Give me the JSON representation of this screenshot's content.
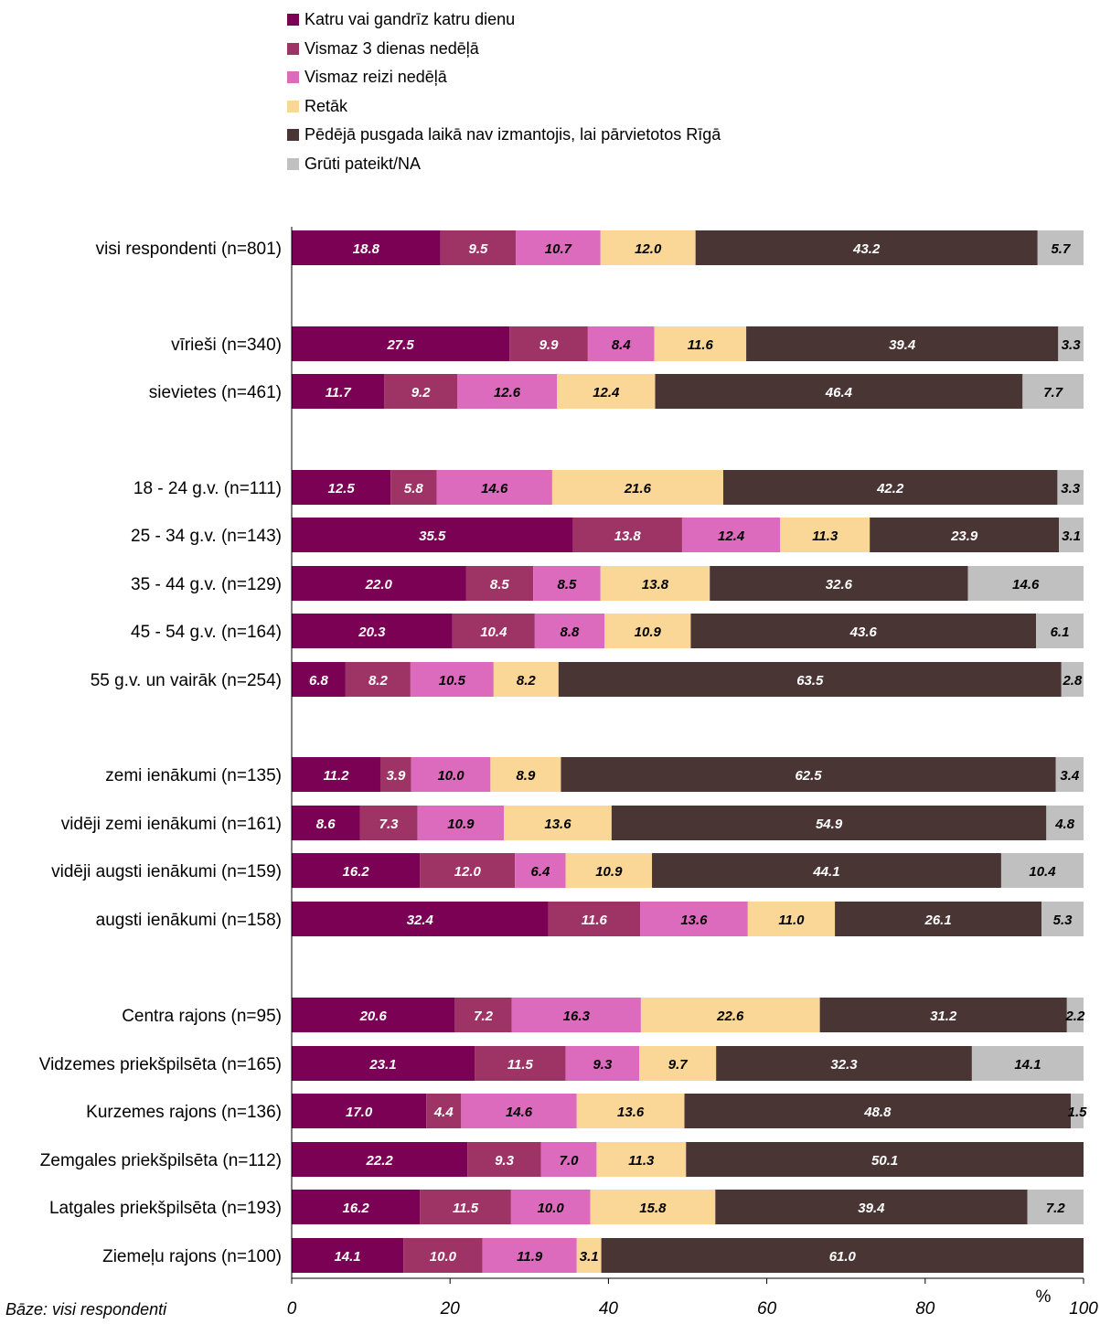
{
  "chart_data": {
    "type": "bar",
    "orientation": "horizontal",
    "stacked": true,
    "series": [
      {
        "name": "Katru vai gandrīz katru dienu",
        "color": "#7b0154",
        "label_color": "#ffffff"
      },
      {
        "name": "Vismaz 3 dienas nedēļā",
        "color": "#9e3466",
        "label_color": "#ffffff"
      },
      {
        "name": "Vismaz reizi nedēļā",
        "color": "#dd6bbd",
        "label_color": "#000000"
      },
      {
        "name": "Retāk",
        "color": "#fad797",
        "label_color": "#000000"
      },
      {
        "name": "Pēdējā pusgada laikā nav izmantojis, lai pārvietotos Rīgā",
        "color": "#4a3535",
        "label_color": "#ffffff"
      },
      {
        "name": "Grūti pateikt/NA",
        "color": "#c0c0c0",
        "label_color": "#000000"
      }
    ],
    "categories": [
      "visi respondenti (n=801)",
      "vīrieši (n=340)",
      "sievietes (n=461)",
      "18 - 24 g.v. (n=111)",
      "25 - 34 g.v. (n=143)",
      "35 - 44 g.v. (n=129)",
      "45 - 54 g.v. (n=164)",
      "55 g.v. un vairāk  (n=254)",
      "zemi ienākumi (n=135)",
      "vidēji zemi ienākumi (n=161)",
      "vidēji augsti ienākumi (n=159)",
      "augsti ienākumi (n=158)",
      "Centra rajons (n=95)",
      "Vidzemes priekšpilsēta (n=165)",
      "Kurzemes rajons (n=136)",
      "Zemgales priekšpilsēta (n=112)",
      "Latgales priekšpilsēta (n=193)",
      "Ziemeļu rajons (n=100)"
    ],
    "values": [
      [
        18.8,
        9.5,
        10.7,
        12.0,
        43.2,
        5.7
      ],
      [
        27.5,
        9.9,
        8.4,
        11.6,
        39.4,
        3.3
      ],
      [
        11.7,
        9.2,
        12.6,
        12.4,
        46.4,
        7.7
      ],
      [
        12.5,
        5.8,
        14.6,
        21.6,
        42.2,
        3.3
      ],
      [
        35.5,
        13.8,
        12.4,
        11.3,
        23.9,
        3.1
      ],
      [
        22.0,
        8.5,
        8.5,
        13.8,
        32.6,
        14.6
      ],
      [
        20.3,
        10.4,
        8.8,
        10.9,
        43.6,
        6.1
      ],
      [
        6.8,
        8.2,
        10.5,
        8.2,
        63.5,
        2.8
      ],
      [
        11.2,
        3.9,
        10.0,
        8.9,
        62.5,
        3.4
      ],
      [
        8.6,
        7.3,
        10.9,
        13.6,
        54.9,
        4.8
      ],
      [
        16.2,
        12.0,
        6.4,
        10.9,
        44.1,
        10.4
      ],
      [
        32.4,
        11.6,
        13.6,
        11.0,
        26.1,
        5.3
      ],
      [
        20.6,
        7.2,
        16.3,
        22.6,
        31.2,
        2.2
      ],
      [
        23.1,
        11.5,
        9.3,
        9.7,
        32.3,
        14.1
      ],
      [
        17.0,
        4.4,
        14.6,
        13.6,
        48.8,
        1.5
      ],
      [
        22.2,
        9.3,
        7.0,
        11.3,
        50.1,
        null
      ],
      [
        16.2,
        11.5,
        10.0,
        15.8,
        39.4,
        7.2
      ],
      [
        14.1,
        10.0,
        11.9,
        3.1,
        61.0,
        null
      ]
    ],
    "xlim": [
      0,
      100
    ],
    "xticks": [
      "0",
      "20",
      "40",
      "60",
      "80",
      "100"
    ],
    "xlabel": "%",
    "grid": false,
    "legend_position": "top"
  },
  "footnote": "Bāze: visi respondenti"
}
